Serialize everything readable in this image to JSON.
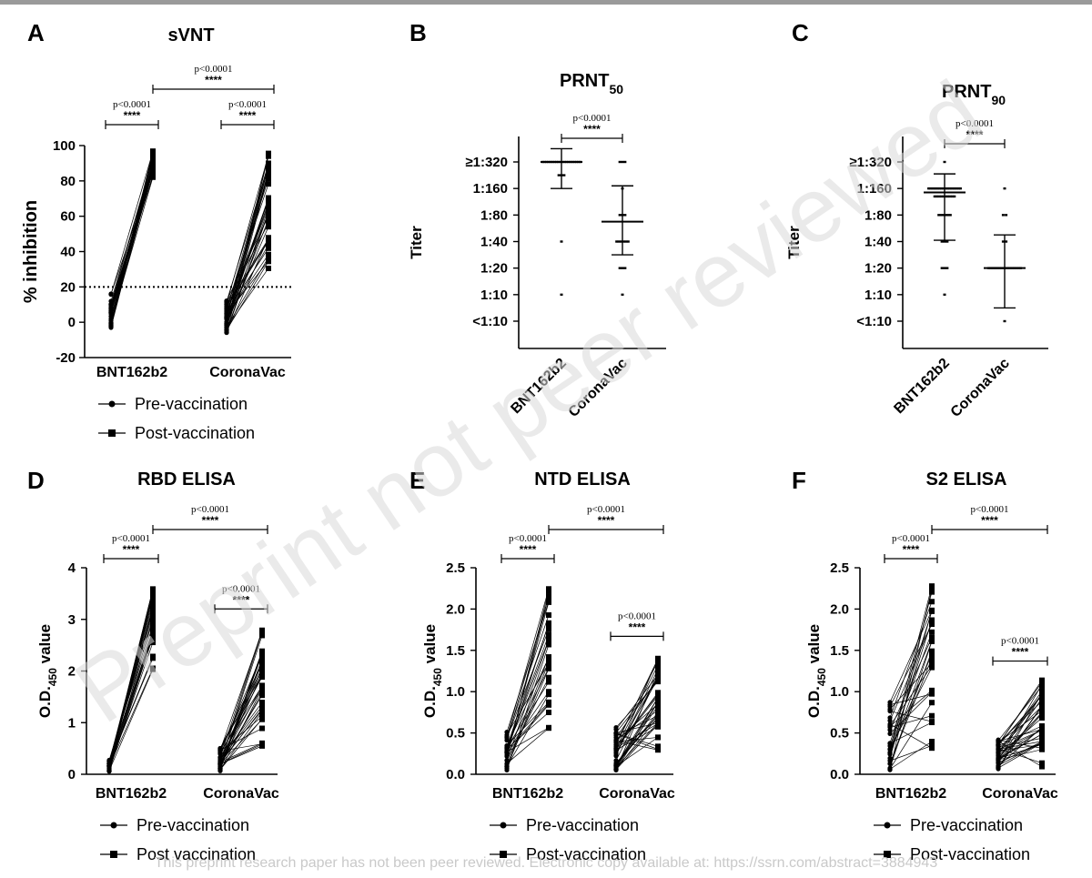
{
  "watermark": "Preprint not peer reviewed",
  "footer": "This preprint research paper has not been peer reviewed. Electronic copy available at: https://ssrn.com/abstract=3884943",
  "colors": {
    "axis": "#000000",
    "pre_marker": "#000000",
    "post_marker": "#000000",
    "watermark": "#d9d9d9"
  },
  "chart_data": [
    {
      "panel": "A",
      "type": "line",
      "title": "sVNT",
      "ylabel": "% inhibition",
      "ylim": [
        -20,
        100
      ],
      "yticks": [
        "-20",
        "0",
        "20",
        "40",
        "60",
        "80",
        "100"
      ],
      "categories": [
        "BNT162b2",
        "CoronaVac"
      ],
      "reference_line": 20,
      "groups": [
        {
          "category": "BNT162b2",
          "n": 30,
          "pre": [
            -4,
            17
          ],
          "post": [
            80,
            97
          ]
        },
        {
          "category": "CoronaVac",
          "n": 40,
          "pre": [
            -6,
            13
          ],
          "post": [
            30,
            96
          ]
        }
      ],
      "comparisons": [
        {
          "label": "p<0.0001",
          "stars": "****"
        },
        {
          "label": "p<0.0001",
          "stars": "****"
        },
        {
          "label": "p<0.0001",
          "stars": "****"
        }
      ],
      "legend": [
        "Pre-vaccination",
        "Post-vaccination"
      ]
    },
    {
      "panel": "B",
      "type": "scatter",
      "title": "PRNT",
      "title_sub": "50",
      "ylabel": "Titer",
      "yticks": [
        "<1:10",
        "1:10",
        "1:20",
        "1:40",
        "1:80",
        "1:160",
        "≥1:320"
      ],
      "categories": [
        "BNT162b2",
        "CoronaVac"
      ],
      "groups": [
        {
          "category": "BNT162b2",
          "mean": 6.0,
          "upper": 6.5,
          "lower": 5.0,
          "points": [
            [
              6,
              20
            ],
            [
              5.5,
              3
            ],
            [
              3,
              1
            ],
            [
              1,
              1
            ]
          ]
        },
        {
          "category": "CoronaVac",
          "mean": 3.75,
          "upper": 5.1,
          "lower": 2.5,
          "points": [
            [
              6,
              3
            ],
            [
              5,
              1
            ],
            [
              4,
              3
            ],
            [
              3,
              6
            ],
            [
              2,
              3
            ],
            [
              1,
              1
            ]
          ]
        }
      ],
      "comparisons": [
        {
          "label": "p<0.0001",
          "stars": "****"
        }
      ]
    },
    {
      "panel": "C",
      "type": "scatter",
      "title": "PRNT",
      "title_sub": "90",
      "ylabel": "Titer",
      "yticks": [
        "<1:10",
        "1:10",
        "1:20",
        "1:40",
        "1:80",
        "1:160",
        "≥1:320"
      ],
      "categories": [
        "BNT162b2",
        "CoronaVac"
      ],
      "groups": [
        {
          "category": "BNT162b2",
          "mean": 4.85,
          "upper": 5.55,
          "lower": 3.05,
          "points": [
            [
              6,
              1
            ],
            [
              5,
              16
            ],
            [
              4.7,
              10
            ],
            [
              4,
              6
            ],
            [
              3,
              3
            ],
            [
              2,
              3
            ],
            [
              1,
              1
            ]
          ]
        },
        {
          "category": "CoronaVac",
          "mean": 2.0,
          "upper": 3.25,
          "lower": 0.5,
          "points": [
            [
              5,
              1
            ],
            [
              4,
              2
            ],
            [
              3,
              2
            ],
            [
              2,
              16
            ],
            [
              0,
              1
            ]
          ]
        }
      ],
      "comparisons": [
        {
          "label": "p<0.0001",
          "stars": "****"
        }
      ]
    },
    {
      "panel": "D",
      "type": "line",
      "title": "RBD ELISA",
      "ylabel": "O.D.",
      "ylabel_sub": "450",
      "ylabel_tail": " value",
      "ylim": [
        0,
        4
      ],
      "yticks": [
        "0",
        "1",
        "2",
        "3",
        "4"
      ],
      "categories": [
        "BNT162b2",
        "CoronaVac"
      ],
      "groups": [
        {
          "category": "BNT162b2",
          "n": 30,
          "pre": [
            0.05,
            0.28
          ],
          "post": [
            1.75,
            3.6
          ]
        },
        {
          "category": "CoronaVac",
          "n": 40,
          "pre": [
            0.05,
            0.52
          ],
          "post": [
            0.38,
            2.85
          ]
        }
      ],
      "comparisons": [
        {
          "label": "p<0.0001",
          "stars": "****"
        },
        {
          "label": "p<0.0001",
          "stars": "****"
        },
        {
          "label": "p<0.0001",
          "stars": "****"
        }
      ],
      "legend": [
        "Pre-vaccination",
        "Post vaccination"
      ]
    },
    {
      "panel": "E",
      "type": "line",
      "title": "NTD ELISA",
      "ylabel": "O.D.",
      "ylabel_sub": "450",
      "ylabel_tail": " value",
      "ylim": [
        0,
        2.5
      ],
      "yticks": [
        "0.0",
        "0.5",
        "1.0",
        "1.5",
        "2.0",
        "2.5"
      ],
      "categories": [
        "BNT162b2",
        "CoronaVac"
      ],
      "groups": [
        {
          "category": "BNT162b2",
          "n": 30,
          "pre": [
            0.05,
            0.53
          ],
          "post": [
            0.53,
            2.25
          ]
        },
        {
          "category": "CoronaVac",
          "n": 40,
          "pre": [
            0.05,
            0.63
          ],
          "post": [
            0.1,
            1.45
          ]
        }
      ],
      "comparisons": [
        {
          "label": "p<0.0001",
          "stars": "****"
        },
        {
          "label": "p<0.0001",
          "stars": "****"
        },
        {
          "label": "p<0.0001",
          "stars": "****"
        }
      ],
      "legend": [
        "Pre-vaccination",
        "Post-vaccination"
      ]
    },
    {
      "panel": "F",
      "type": "line",
      "title": "S2 ELISA",
      "ylabel": "O.D.",
      "ylabel_sub": "450",
      "ylabel_tail": " value",
      "ylim": [
        0,
        2.5
      ],
      "yticks": [
        "0.0",
        "0.5",
        "1.0",
        "1.5",
        "2.0",
        "2.5"
      ],
      "categories": [
        "BNT162b2",
        "CoronaVac"
      ],
      "groups": [
        {
          "category": "BNT162b2",
          "n": 30,
          "pre": [
            0.05,
            0.9
          ],
          "post": [
            0.25,
            2.28
          ]
        },
        {
          "category": "CoronaVac",
          "n": 40,
          "pre": [
            0.05,
            0.42
          ],
          "post": [
            0.08,
            1.15
          ]
        }
      ],
      "comparisons": [
        {
          "label": "p<0.0001",
          "stars": "****"
        },
        {
          "label": "p<0.0001",
          "stars": "****"
        },
        {
          "label": "p<0.0001",
          "stars": "****"
        }
      ],
      "legend": [
        "Pre-vaccination",
        "Post-vaccination"
      ]
    }
  ]
}
